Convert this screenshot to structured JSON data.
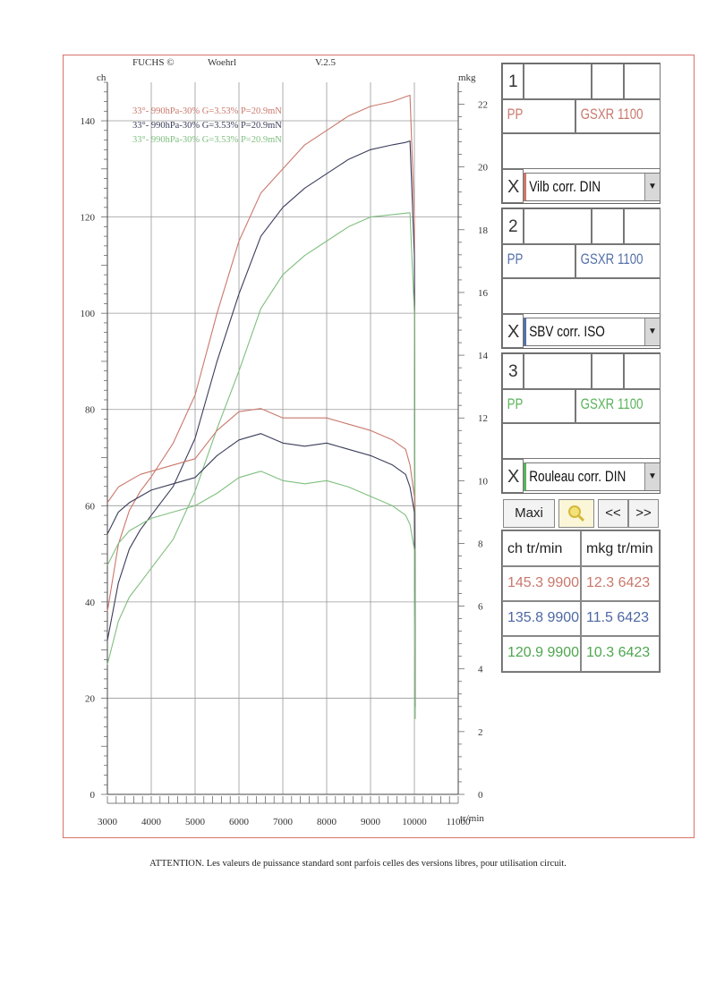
{
  "header": {
    "vendor": "FUCHS ©",
    "operator": "Woehrl",
    "version": "V.2.5"
  },
  "axes": {
    "left_unit": "ch",
    "right_unit": "mkg",
    "x_unit": "tr/min",
    "left_ticks": [
      "0",
      "20",
      "40",
      "60",
      "80",
      "100",
      "120",
      "140"
    ],
    "right_ticks": [
      "0",
      "2",
      "4",
      "6",
      "8",
      "10",
      "12",
      "14",
      "16",
      "18",
      "20",
      "22"
    ],
    "x_ticks": [
      "3000",
      "4000",
      "5000",
      "6000",
      "7000",
      "8000",
      "9000",
      "10000",
      "11000"
    ]
  },
  "legend_lines": [
    "33°- 990hPa-30% G=3.53% P=20.9mN",
    "33°- 990hPa-30% G=3.53% P=20.9mN",
    "33°- 990hPa-30% G=3.53% P=20.9mN"
  ],
  "colors": {
    "run1": "#c9786c",
    "run2": "#3a3d5a",
    "run3": "#7fbf7f",
    "frame": "#d9736a"
  },
  "runs": [
    {
      "num": "1",
      "code": "PP",
      "model": "GSXR 1100",
      "corr": "Vilb corr. DIN",
      "x": "X",
      "color": "#c9786c"
    },
    {
      "num": "2",
      "code": "PP",
      "model": "GSXR 1100",
      "corr": "SBV corr. ISO",
      "x": "X",
      "color": "#5470a8"
    },
    {
      "num": "3",
      "code": "PP",
      "model": "GSXR 1100",
      "corr": "Rouleau corr. DIN",
      "x": "X",
      "color": "#5ab35a"
    }
  ],
  "buttons": {
    "maxi": "Maxi",
    "prev": "<<",
    "next": ">>"
  },
  "table": {
    "headers": [
      "ch   tr/min",
      "mkg  tr/min"
    ],
    "rows": [
      {
        "power": "145.3  9900",
        "torque": "12.3  6423"
      },
      {
        "power": "135.8  9900",
        "torque": "11.5  6423"
      },
      {
        "power": "120.9  9900",
        "torque": "10.3  6423"
      }
    ]
  },
  "footer": "ATTENTION. Les valeurs de puissance standard sont parfois celles des versions libres, pour utilisation circuit.",
  "chart_data": {
    "type": "line",
    "xlabel": "tr/min",
    "ylabel": "ch",
    "y2label": "mkg",
    "xlim": [
      3000,
      11000
    ],
    "ylim": [
      0,
      148
    ],
    "y2lim": [
      0,
      22.7
    ],
    "grid": true,
    "x": [
      3000,
      3250,
      3500,
      3750,
      4000,
      4500,
      5000,
      5500,
      6000,
      6500,
      7000,
      7500,
      8000,
      8500,
      9000,
      9500,
      9800,
      9900,
      10000,
      10020
    ],
    "series": [
      {
        "name": "33°- 990hPa-30% G=3.53% P=20.9mN",
        "axis": "left",
        "color": "#c9786c",
        "values": [
          38,
          52,
          59,
          63,
          66,
          73,
          83,
          100,
          115,
          125,
          130,
          135,
          138,
          141,
          143,
          144,
          145,
          145.3,
          120,
          20
        ]
      },
      {
        "name": "33°- 990hPa-30% G=3.53% P=20.9mN",
        "axis": "left",
        "color": "#3a3d5a",
        "values": [
          32,
          44,
          51,
          55,
          58,
          64,
          74,
          90,
          104,
          116,
          122,
          126,
          129,
          132,
          134,
          135,
          135.5,
          135.8,
          112,
          18
        ]
      },
      {
        "name": "33°- 990hPa-30% G=3.53% P=20.9mN",
        "axis": "left",
        "color": "#7fbf7f",
        "values": [
          27,
          36,
          41,
          44,
          47,
          53,
          63,
          76,
          88,
          101,
          108,
          112,
          115,
          118,
          120,
          120.5,
          120.8,
          120.9,
          100,
          16
        ]
      },
      {
        "name": "33°- 990hPa-30% G=3.53% P=20.9mN",
        "axis": "right",
        "color": "#c9786c",
        "values": [
          9.3,
          9.8,
          10.0,
          10.2,
          10.3,
          10.5,
          10.7,
          11.6,
          12.2,
          12.3,
          12.0,
          12.0,
          12.0,
          11.8,
          11.6,
          11.3,
          11.0,
          10.5,
          9.5,
          3
        ]
      },
      {
        "name": "33°- 990hPa-30% G=3.53% P=20.9mN",
        "axis": "right",
        "color": "#3a3d5a",
        "values": [
          8.3,
          9.0,
          9.3,
          9.5,
          9.7,
          9.9,
          10.1,
          10.8,
          11.3,
          11.5,
          11.2,
          11.1,
          11.2,
          11.0,
          10.8,
          10.5,
          10.2,
          9.8,
          9.0,
          2.8
        ]
      },
      {
        "name": "33°- 990hPa-30% G=3.53% P=20.9mN",
        "axis": "right",
        "color": "#7fbf7f",
        "values": [
          7.3,
          8.0,
          8.4,
          8.6,
          8.8,
          9.0,
          9.2,
          9.6,
          10.1,
          10.3,
          10.0,
          9.9,
          10.0,
          9.8,
          9.5,
          9.2,
          8.9,
          8.6,
          7.8,
          2.4
        ]
      }
    ]
  }
}
